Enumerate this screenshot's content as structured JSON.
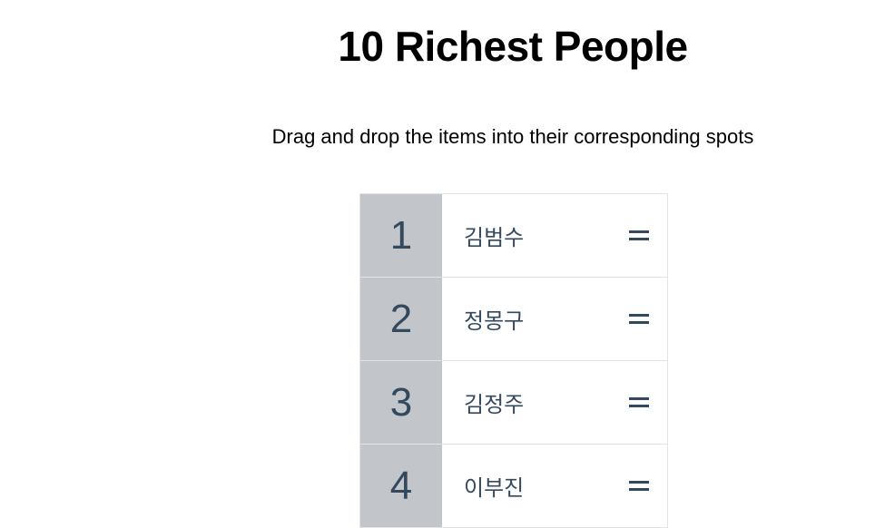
{
  "header": {
    "title": "10 Richest People",
    "subtitle": "Drag and drop the items into their corresponding spots"
  },
  "list": {
    "items": [
      {
        "rank": 1,
        "name": "김범수"
      },
      {
        "rank": 2,
        "name": "정몽구"
      },
      {
        "rank": 3,
        "name": "김정주"
      },
      {
        "rank": 4,
        "name": "이부진"
      }
    ]
  }
}
